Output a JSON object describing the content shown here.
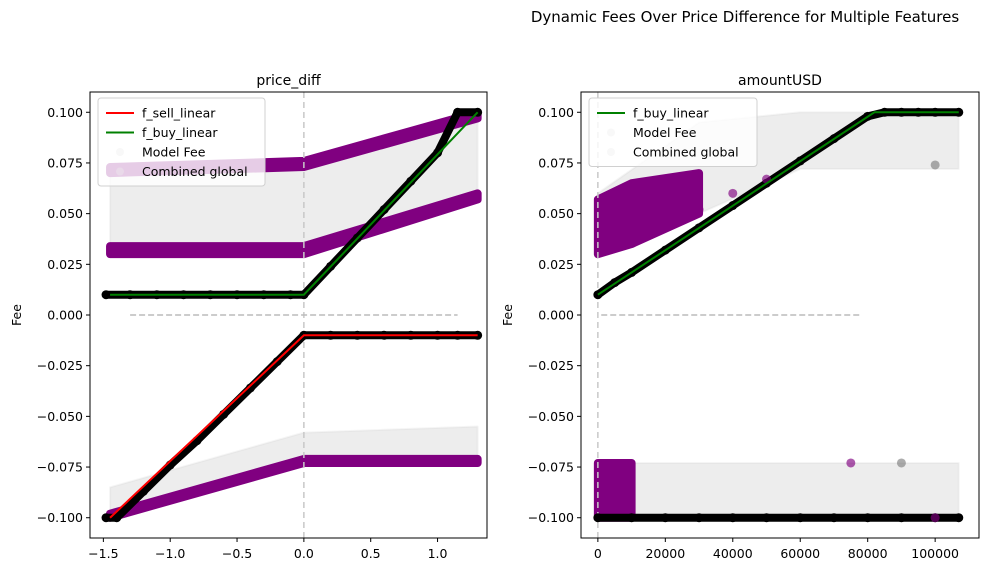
{
  "figure": {
    "title": "Dynamic Fees Over Price Difference for Multiple Features"
  },
  "chart_data": [
    {
      "type": "scatter",
      "title": "price_diff",
      "xlabel": "",
      "ylabel": "Fee",
      "xlim": [
        -1.6,
        1.37
      ],
      "ylim": [
        -0.11,
        0.11
      ],
      "xticks": [
        -1.5,
        -1.0,
        -0.5,
        0.0,
        0.5,
        1.0
      ],
      "xtick_labels": [
        "−1.5",
        "−1.0",
        "−0.5",
        "0.0",
        "0.5",
        "1.0"
      ],
      "yticks": [
        0.1,
        0.075,
        0.05,
        0.025,
        0.0,
        -0.025,
        -0.05,
        -0.075,
        -0.1
      ],
      "ytick_labels": [
        "0.100",
        "0.075",
        "0.050",
        "0.025",
        "0.000",
        "−0.025",
        "−0.050",
        "−0.075",
        "−0.100"
      ],
      "vline_x": 0.0,
      "legend": {
        "placement": "upper-left",
        "entries": [
          "f_sell_linear",
          "f_buy_linear",
          "Model Fee",
          "Combined global"
        ]
      },
      "series": [
        {
          "name": "f_sell_linear",
          "kind": "line",
          "color": "#ff0000",
          "x": [
            -1.45,
            0.0,
            1.3
          ],
          "y": [
            -0.1,
            -0.01,
            -0.01
          ]
        },
        {
          "name": "f_buy_linear",
          "kind": "line",
          "color": "#008000",
          "x": [
            -1.45,
            0.0,
            1.3
          ],
          "y": [
            0.01,
            0.01,
            0.1
          ]
        },
        {
          "name": "Model Fee",
          "kind": "band",
          "color": "#cccccc",
          "x": [
            -1.45,
            0.0,
            1.3
          ],
          "y_low": [
            0.03,
            0.035,
            0.057
          ],
          "y_high": [
            0.073,
            0.073,
            0.095
          ]
        },
        {
          "name": "Model Fee",
          "kind": "band",
          "color": "#cccccc",
          "x": [
            -1.45,
            0.0,
            1.3
          ],
          "y_low": [
            -0.1,
            -0.07,
            -0.07
          ],
          "y_high": [
            -0.085,
            -0.058,
            -0.055
          ]
        },
        {
          "name": "Combined global",
          "kind": "band",
          "color": "#800080",
          "x": [
            -1.45,
            0.0,
            1.3
          ],
          "y_low": [
            0.03,
            0.03,
            0.057
          ],
          "y_high": [
            0.034,
            0.034,
            0.06
          ]
        },
        {
          "name": "Combined global",
          "kind": "band",
          "color": "#800080",
          "x": [
            -1.45,
            0.0,
            1.3
          ],
          "y_low": [
            0.07,
            0.073,
            0.097
          ],
          "y_high": [
            0.073,
            0.076,
            0.1
          ]
        },
        {
          "name": "Combined global",
          "kind": "band",
          "color": "#800080",
          "x": [
            -1.45,
            0.0,
            1.3
          ],
          "y_low": [
            -0.1,
            -0.073,
            -0.073
          ],
          "y_high": [
            -0.098,
            -0.071,
            -0.071
          ]
        },
        {
          "name": "",
          "kind": "dashed",
          "color": "#bbbbbb",
          "x": [
            -1.3,
            1.15
          ],
          "y": [
            0.0,
            0.0
          ]
        },
        {
          "name": "",
          "kind": "markers",
          "color": "#000000",
          "x": [
            -1.48,
            -1.3,
            -1.1,
            -0.9,
            -0.7,
            -0.5,
            -0.3,
            -0.1,
            0.0,
            0.2,
            0.4,
            0.6,
            0.8,
            1.0,
            1.15,
            1.3
          ],
          "y": [
            0.01,
            0.01,
            0.01,
            0.01,
            0.01,
            0.01,
            0.01,
            0.01,
            0.01,
            0.024,
            0.038,
            0.052,
            0.066,
            0.08,
            0.1,
            0.1
          ]
        },
        {
          "name": "",
          "kind": "markers",
          "color": "#000000",
          "x": [
            -1.48,
            -1.4,
            -1.2,
            -1.0,
            -0.8,
            -0.6,
            -0.4,
            -0.2,
            0.0,
            0.2,
            0.4,
            0.6,
            0.8,
            1.0,
            1.15,
            1.3
          ],
          "y": [
            -0.1,
            -0.1,
            -0.087,
            -0.074,
            -0.062,
            -0.049,
            -0.036,
            -0.023,
            -0.01,
            -0.01,
            -0.01,
            -0.01,
            -0.01,
            -0.01,
            -0.01,
            -0.01
          ]
        }
      ]
    },
    {
      "type": "scatter",
      "title": "amountUSD",
      "xlabel": "",
      "ylabel": "Fee",
      "xlim": [
        -5000,
        113000
      ],
      "ylim": [
        -0.11,
        0.11
      ],
      "xticks": [
        0,
        20000,
        40000,
        60000,
        80000,
        100000
      ],
      "xtick_labels": [
        "0",
        "20000",
        "40000",
        "60000",
        "80000",
        "100000"
      ],
      "yticks": [
        0.1,
        0.075,
        0.05,
        0.025,
        0.0,
        -0.025,
        -0.05,
        -0.075,
        -0.1
      ],
      "ytick_labels": [
        "0.100",
        "0.075",
        "0.050",
        "0.025",
        "0.000",
        "−0.025",
        "−0.050",
        "−0.075",
        "−0.100"
      ],
      "vline_x": 0,
      "legend": {
        "placement": "upper-left",
        "entries": [
          "f_buy_linear",
          "Model Fee",
          "Combined global"
        ]
      },
      "series": [
        {
          "name": "f_buy_linear",
          "kind": "line",
          "color": "#008000",
          "x": [
            0,
            82000,
            107000
          ],
          "y": [
            0.01,
            0.1,
            0.1
          ]
        },
        {
          "name": "Model Fee",
          "kind": "band",
          "color": "#cccccc",
          "x": [
            0,
            30000,
            60000,
            107000
          ],
          "y_low": [
            0.03,
            0.05,
            0.072,
            0.072
          ],
          "y_high": [
            0.06,
            0.095,
            0.1,
            0.1
          ]
        },
        {
          "name": "Model Fee",
          "kind": "band",
          "color": "#cccccc",
          "x": [
            0,
            107000
          ],
          "y_low": [
            -0.1,
            -0.1
          ],
          "y_high": [
            -0.073,
            -0.073
          ]
        },
        {
          "name": "Combined global",
          "kind": "band",
          "color": "#800080",
          "x": [
            0,
            10000,
            30000
          ],
          "y_low": [
            0.03,
            0.035,
            0.05
          ],
          "y_high": [
            0.057,
            0.065,
            0.07
          ]
        },
        {
          "name": "Combined global",
          "kind": "band",
          "color": "#800080",
          "x": [
            0,
            10000
          ],
          "y_low": [
            -0.1,
            -0.1
          ],
          "y_high": [
            -0.073,
            -0.073
          ]
        },
        {
          "name": "",
          "kind": "dashed",
          "color": "#bbbbbb",
          "x": [
            1000,
            78000
          ],
          "y": [
            0.0,
            0.0
          ]
        },
        {
          "name": "",
          "kind": "markers",
          "color": "#000000",
          "x": [
            0,
            5000,
            10000,
            20000,
            30000,
            40000,
            50000,
            60000,
            70000,
            80000,
            85000,
            90000,
            95000,
            100000,
            107000
          ],
          "y": [
            0.01,
            0.016,
            0.021,
            0.032,
            0.043,
            0.054,
            0.065,
            0.076,
            0.087,
            0.098,
            0.1,
            0.1,
            0.1,
            0.1,
            0.1
          ]
        },
        {
          "name": "",
          "kind": "markers",
          "color": "#000000",
          "x": [
            0,
            10000,
            20000,
            30000,
            40000,
            50000,
            60000,
            70000,
            80000,
            90000,
            100000,
            107000
          ],
          "y": [
            -0.1,
            -0.1,
            -0.1,
            -0.1,
            -0.1,
            -0.1,
            -0.1,
            -0.1,
            -0.1,
            -0.1,
            -0.1,
            -0.1
          ]
        },
        {
          "name": "",
          "kind": "markers",
          "color": "#800080",
          "x": [
            30000,
            40000,
            50000,
            75000,
            100000
          ],
          "y": [
            0.052,
            0.06,
            0.067,
            -0.073,
            -0.1
          ]
        },
        {
          "name": "",
          "kind": "markers",
          "color": "#808080",
          "x": [
            100000,
            90000
          ],
          "y": [
            0.074,
            -0.073
          ]
        }
      ]
    }
  ]
}
